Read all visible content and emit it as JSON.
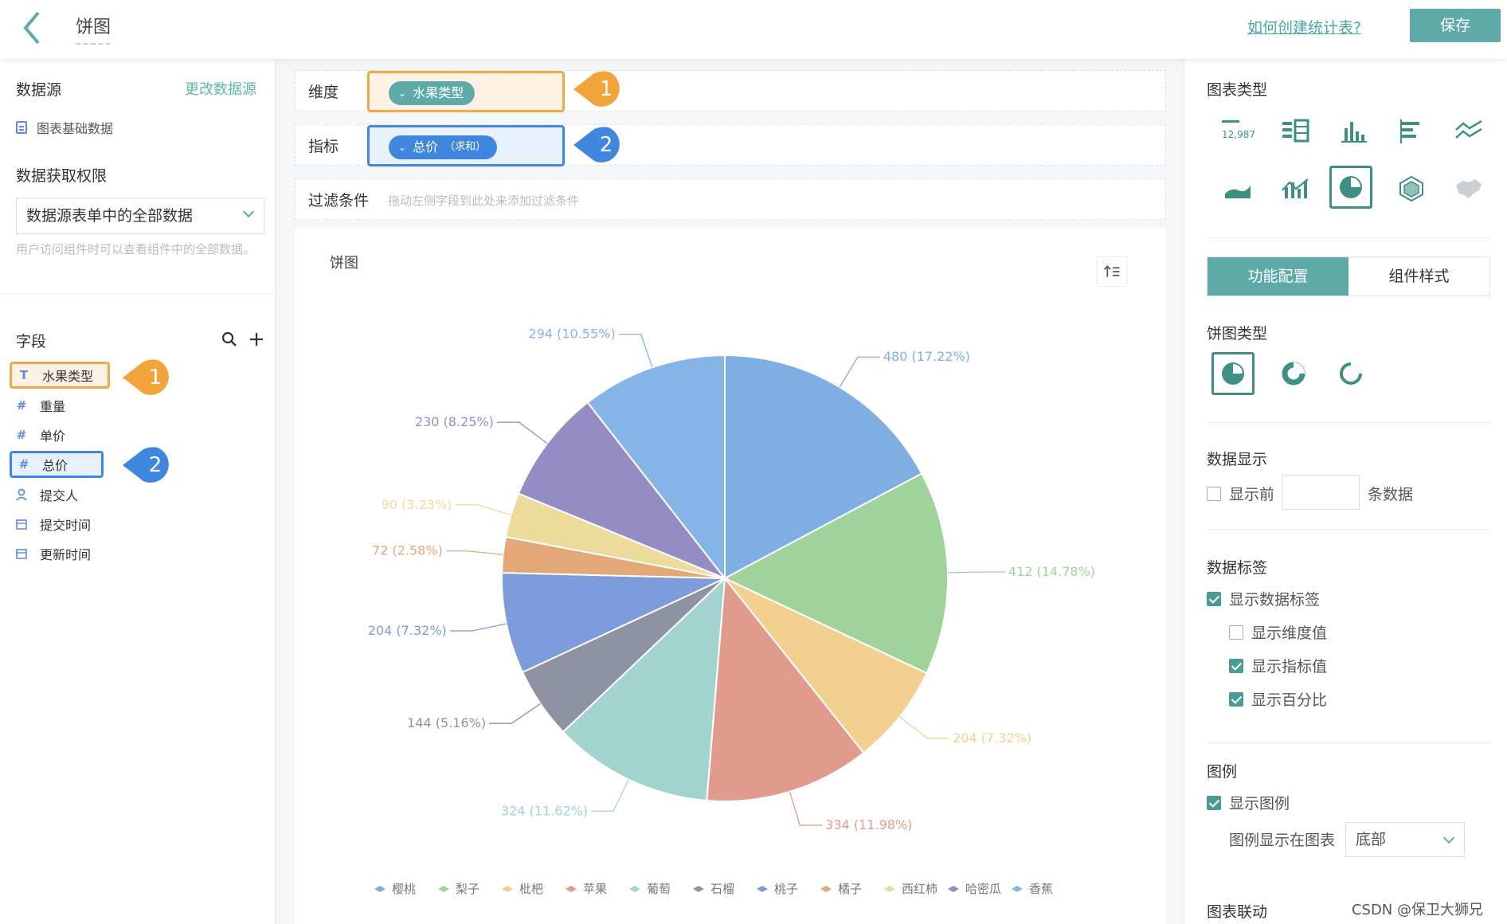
{
  "header": {
    "page_title": "饼图",
    "help_link": "如何创建统计表?",
    "save_label": "保存"
  },
  "left": {
    "datasource_title": "数据源",
    "change_datasource": "更改数据源",
    "datasource_item": "图表基础数据",
    "permission_title": "数据获取权限",
    "permission_value": "数据源表单中的全部数据",
    "permission_hint": "用户访问组件时可以查看组件中的全部数据。",
    "fields_title": "字段",
    "fields": [
      {
        "icon": "T",
        "label": "水果类型"
      },
      {
        "icon": "#",
        "label": "重量"
      },
      {
        "icon": "#",
        "label": "单价"
      },
      {
        "icon": "#",
        "label": "总价"
      },
      {
        "icon": "user",
        "label": "提交人"
      },
      {
        "icon": "cal",
        "label": "提交时间"
      },
      {
        "icon": "cal",
        "label": "更新时间"
      }
    ],
    "badge1": "1",
    "badge2": "2"
  },
  "center": {
    "dimension_label": "维度",
    "dimension_pill": "水果类型",
    "metric_label": "指标",
    "metric_pill": "总价",
    "metric_agg": "（求和）",
    "filter_label": "过滤条件",
    "filter_placeholder": "拖动左侧字段到此处来添加过滤条件",
    "card_title": "饼图",
    "badge1": "1",
    "badge2": "2"
  },
  "chart_data": {
    "type": "pie",
    "categories": [
      "樱桃",
      "梨子",
      "枇杷",
      "苹果",
      "葡萄",
      "石榴",
      "桃子",
      "橘子",
      "西红柿",
      "哈密瓜",
      "香蕉"
    ],
    "values": [
      480,
      412,
      204,
      334,
      324,
      144,
      204,
      72,
      90,
      230,
      294
    ],
    "percentages": [
      "17.22%",
      "14.78%",
      "7.32%",
      "11.98%",
      "11.62%",
      "5.16%",
      "7.32%",
      "2.58%",
      "3.23%",
      "8.25%",
      "10.55%"
    ],
    "colors": [
      "#7faee3",
      "#9fd39b",
      "#f2d08f",
      "#e19b8d",
      "#a2d3cf",
      "#8f92a3",
      "#7e9bdb",
      "#e2a877",
      "#ecdb9a",
      "#968cc4",
      "#85b4e6"
    ],
    "legend_position": "bottom"
  },
  "right": {
    "chart_type_title": "图表类型",
    "metric_number_text": "12,987",
    "tab_function": "功能配置",
    "tab_style": "组件样式",
    "pie_type_title": "饼图类型",
    "data_display_title": "数据显示",
    "show_top_label": "显示前",
    "show_top_suffix": "条数据",
    "data_label_title": "数据标签",
    "show_data_label": "显示数据标签",
    "show_dim_value": "显示维度值",
    "show_metric_value": "显示指标值",
    "show_percent": "显示百分比",
    "legend_title": "图例",
    "show_legend": "显示图例",
    "legend_pos_label": "图例显示在图表",
    "legend_pos_value": "底部",
    "linkage_title": "图表联动"
  },
  "watermark": "CSDN @保卫大狮兄"
}
